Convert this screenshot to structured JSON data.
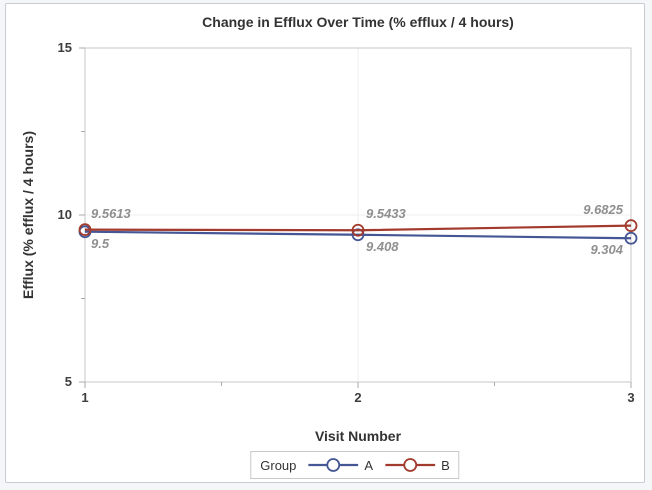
{
  "chart_data": {
    "type": "line",
    "title": "Change in Efflux Over Time (% efflux / 4 hours)",
    "xlabel": "Visit Number",
    "ylabel": "Efflux (% efflux / 4 hours)",
    "xlim": [
      1,
      3
    ],
    "ylim": [
      5,
      15
    ],
    "x": [
      1,
      2,
      3
    ],
    "xticks": {
      "major_values": [
        1,
        2,
        3
      ],
      "major_labels": [
        "1",
        "2",
        "3"
      ],
      "minor_values": [
        1.5,
        2.5
      ]
    },
    "yticks": {
      "major_values": [
        15,
        10,
        5
      ],
      "major_labels": [
        "15",
        "10",
        "5"
      ],
      "minor_values": [
        12.5,
        7.5
      ]
    },
    "grid": {
      "interior_major_gridlines": true,
      "color": "#efefef"
    },
    "series": [
      {
        "name": "A",
        "color": "#445694",
        "marker": "open-circle",
        "values": [
          9.5,
          9.408,
          9.304
        ],
        "point_labels": [
          "9.5",
          "9.408",
          "9.304"
        ],
        "label_position": "below"
      },
      {
        "name": "B",
        "color": "#A23A2E",
        "marker": "open-circle",
        "values": [
          9.5613,
          9.5433,
          9.6825
        ],
        "point_labels": [
          "9.5613",
          "9.5433",
          "9.6825"
        ],
        "label_position": "above"
      }
    ],
    "legend": {
      "title": "Group",
      "position": "bottom",
      "entries": [
        "A",
        "B"
      ]
    },
    "styles": {
      "text_color": "#333333",
      "tick_label_color": "#3d3d3d",
      "data_label_color": "#8f8f8f",
      "axis_frame_color": "#c7c7c7",
      "tick_color": "#ababab",
      "gridline_color": "#efefef",
      "plot_background": "#ffffff",
      "page_background": "#f5f6f8",
      "frame_border_color": "#c9cad2",
      "legend_border_color": "#c9c9c9"
    }
  }
}
